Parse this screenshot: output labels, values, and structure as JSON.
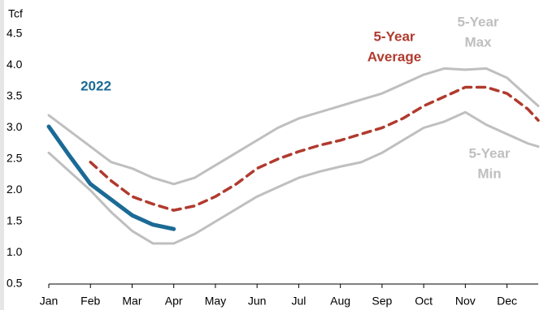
{
  "chart_data": {
    "type": "line",
    "y_unit": "Tcf",
    "x": [
      0,
      0.5,
      1,
      1.5,
      2,
      2.5,
      3,
      3.5,
      4,
      4.5,
      5,
      5.5,
      6,
      6.5,
      7,
      7.5,
      8,
      8.5,
      9,
      9.5,
      10,
      10.5,
      11,
      11.5,
      11.75
    ],
    "xlim": [
      0,
      11.75
    ],
    "xticks": [
      {
        "value": 0,
        "label": "Jan"
      },
      {
        "value": 1,
        "label": "Feb"
      },
      {
        "value": 2,
        "label": "Mar"
      },
      {
        "value": 3,
        "label": "Apr"
      },
      {
        "value": 4,
        "label": "May"
      },
      {
        "value": 5,
        "label": "Jun"
      },
      {
        "value": 6,
        "label": "Jul"
      },
      {
        "value": 7,
        "label": "Aug"
      },
      {
        "value": 8,
        "label": "Sep"
      },
      {
        "value": 9,
        "label": "Oct"
      },
      {
        "value": 10,
        "label": "Nov"
      },
      {
        "value": 11,
        "label": "Dec"
      }
    ],
    "ylim": [
      0.5,
      4.5
    ],
    "yticks": [
      {
        "value": 0.5,
        "label": "0.5"
      },
      {
        "value": 1,
        "label": "1.0"
      },
      {
        "value": 1.5,
        "label": "1.5"
      },
      {
        "value": 2,
        "label": "2.0"
      },
      {
        "value": 2.5,
        "label": "2.5"
      },
      {
        "value": 3,
        "label": "3.0"
      },
      {
        "value": 3.5,
        "label": "3.5"
      },
      {
        "value": 4,
        "label": "4.0"
      },
      {
        "value": 4.5,
        "label": "4.5"
      }
    ],
    "grid": false,
    "series": [
      {
        "label_lines": [
          "5-Year",
          "Max"
        ],
        "color": "#bfbfbf",
        "dash": false,
        "width": 3,
        "values": [
          3.2,
          2.95,
          2.7,
          2.45,
          2.35,
          2.2,
          2.1,
          2.2,
          2.4,
          2.6,
          2.8,
          3.0,
          3.15,
          3.25,
          3.35,
          3.45,
          3.55,
          3.7,
          3.85,
          3.95,
          3.93,
          3.95,
          3.8,
          3.5,
          3.35
        ]
      },
      {
        "label_lines": [
          "5-Year",
          "Min"
        ],
        "color": "#bfbfbf",
        "dash": false,
        "width": 3,
        "values": [
          2.6,
          2.3,
          2.0,
          1.65,
          1.35,
          1.15,
          1.15,
          1.3,
          1.5,
          1.7,
          1.9,
          2.05,
          2.2,
          2.3,
          2.38,
          2.45,
          2.6,
          2.8,
          3.0,
          3.1,
          3.25,
          3.05,
          2.9,
          2.75,
          2.7
        ]
      },
      {
        "label_lines": [
          "5-Year",
          "Average"
        ],
        "color": "#b03a2e",
        "dash": true,
        "width": 3.5,
        "values": [
          null,
          null,
          2.45,
          2.15,
          1.9,
          1.78,
          1.68,
          1.75,
          1.9,
          2.1,
          2.35,
          2.5,
          2.62,
          2.72,
          2.8,
          2.9,
          3.0,
          3.15,
          3.35,
          3.5,
          3.65,
          3.65,
          3.55,
          3.3,
          3.12
        ]
      },
      {
        "label_lines": [
          "2022"
        ],
        "color": "#1b6a96",
        "dash": false,
        "width": 5,
        "values": [
          3.02,
          2.55,
          2.1,
          1.85,
          1.6,
          1.45,
          1.38,
          null,
          null,
          null,
          null,
          null,
          null,
          null,
          null,
          null,
          null,
          null,
          null,
          null,
          null,
          null,
          null,
          null,
          null
        ]
      }
    ]
  }
}
